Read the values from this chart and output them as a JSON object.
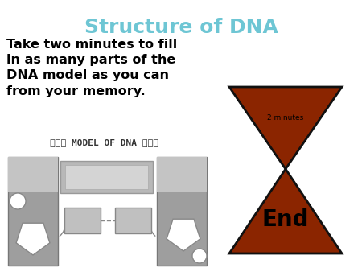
{
  "title": "Structure of DNA",
  "title_color": "#6EC6D4",
  "title_fontsize": 18,
  "body_text": "Take two minutes to fill\nin as many parts of the\nDNA model as you can\nfrom your memory.",
  "body_fontsize": 11.5,
  "subtitle_text": "ØØØ MODEL OF DNA ØØØ",
  "subtitle_fontsize": 8,
  "hourglass_color": "#8B2500",
  "hourglass_outline": "#111111",
  "timer_text": "2 minutes",
  "end_text": "End",
  "bg_color": "#ffffff",
  "dna_bar_color": "#9e9e9e",
  "dna_bar_light": "#c4c4c4",
  "dna_center_color": "#b8b8b8",
  "dna_inner_color": "#d4d4d4",
  "dna_box_color": "#c0c0c0",
  "dna_white": "#ffffff"
}
